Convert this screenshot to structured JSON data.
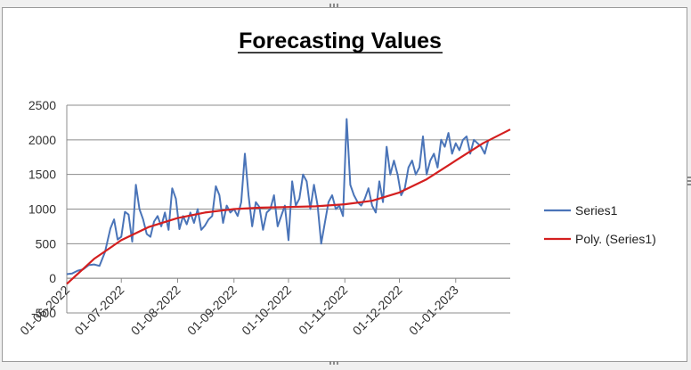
{
  "chart_data": {
    "type": "line",
    "title": "Forecasting Values",
    "xlabel": "",
    "ylabel": "",
    "ylim": [
      -500,
      2500
    ],
    "yticks": [
      -500,
      0,
      500,
      1000,
      1500,
      2000,
      2500
    ],
    "yticks_labels": [
      "-500",
      "0",
      "500",
      "1000",
      "1500",
      "2000",
      "2500"
    ],
    "xlim": [
      "2022-06-01",
      "2023-01-31"
    ],
    "xticks": [
      "2022-06-01",
      "2022-07-01",
      "2022-08-01",
      "2022-09-01",
      "2022-10-01",
      "2022-11-01",
      "2022-12-01",
      "2023-01-01"
    ],
    "xtick_labels": [
      "01-06-2022",
      "01-07-2022",
      "01-08-2022",
      "01-09-2022",
      "01-10-2022",
      "01-11-2022",
      "01-12-2022",
      "01-01-2023"
    ],
    "grid": true,
    "legend_position": "right",
    "colors": {
      "series1": "#4a74b8",
      "trend": "#d41f1f",
      "grid": "#8c8c8c",
      "axis": "#8c8c8c"
    },
    "series": [
      {
        "name": "Series1",
        "x": [
          "2022-06-01",
          "2022-06-04",
          "2022-06-07",
          "2022-06-10",
          "2022-06-13",
          "2022-06-16",
          "2022-06-19",
          "2022-06-22",
          "2022-06-25",
          "2022-06-27",
          "2022-06-29",
          "2022-07-01",
          "2022-07-03",
          "2022-07-05",
          "2022-07-07",
          "2022-07-09",
          "2022-07-11",
          "2022-07-13",
          "2022-07-15",
          "2022-07-17",
          "2022-07-19",
          "2022-07-21",
          "2022-07-23",
          "2022-07-25",
          "2022-07-27",
          "2022-07-29",
          "2022-07-31",
          "2022-08-02",
          "2022-08-04",
          "2022-08-06",
          "2022-08-08",
          "2022-08-10",
          "2022-08-12",
          "2022-08-14",
          "2022-08-16",
          "2022-08-18",
          "2022-08-20",
          "2022-08-22",
          "2022-08-24",
          "2022-08-26",
          "2022-08-28",
          "2022-08-30",
          "2022-09-01",
          "2022-09-03",
          "2022-09-05",
          "2022-09-07",
          "2022-09-09",
          "2022-09-11",
          "2022-09-13",
          "2022-09-15",
          "2022-09-17",
          "2022-09-19",
          "2022-09-21",
          "2022-09-23",
          "2022-09-25",
          "2022-09-27",
          "2022-09-29",
          "2022-10-01",
          "2022-10-03",
          "2022-10-05",
          "2022-10-07",
          "2022-10-09",
          "2022-10-11",
          "2022-10-13",
          "2022-10-15",
          "2022-10-17",
          "2022-10-19",
          "2022-10-21",
          "2022-10-23",
          "2022-10-25",
          "2022-10-27",
          "2022-10-29",
          "2022-10-31",
          "2022-11-02",
          "2022-11-04",
          "2022-11-06",
          "2022-11-08",
          "2022-11-10",
          "2022-11-12",
          "2022-11-14",
          "2022-11-16",
          "2022-11-18",
          "2022-11-20",
          "2022-11-22",
          "2022-11-24",
          "2022-11-26",
          "2022-11-28",
          "2022-11-30",
          "2022-12-02",
          "2022-12-04",
          "2022-12-06",
          "2022-12-08",
          "2022-12-10",
          "2022-12-12",
          "2022-12-14",
          "2022-12-16",
          "2022-12-18",
          "2022-12-20",
          "2022-12-22",
          "2022-12-24",
          "2022-12-26",
          "2022-12-28",
          "2022-12-30",
          "2023-01-01",
          "2023-01-03",
          "2023-01-05",
          "2023-01-07",
          "2023-01-09",
          "2023-01-11",
          "2023-01-13",
          "2023-01-15",
          "2023-01-17",
          "2023-01-19"
        ],
        "y": [
          60,
          70,
          110,
          130,
          190,
          200,
          180,
          380,
          720,
          850,
          560,
          600,
          960,
          920,
          530,
          1350,
          1000,
          850,
          640,
          600,
          820,
          900,
          750,
          950,
          700,
          1300,
          1150,
          710,
          900,
          780,
          950,
          800,
          1000,
          700,
          760,
          850,
          900,
          1330,
          1200,
          800,
          1050,
          950,
          1000,
          900,
          1100,
          1800,
          1200,
          750,
          1100,
          1030,
          700,
          950,
          1000,
          1200,
          750,
          900,
          1050,
          550,
          1400,
          1050,
          1150,
          1500,
          1400,
          1000,
          1350,
          1050,
          500,
          800,
          1100,
          1200,
          1000,
          1050,
          900,
          2300,
          1350,
          1200,
          1100,
          1050,
          1150,
          1300,
          1050,
          950,
          1400,
          1100,
          1900,
          1500,
          1700,
          1500,
          1200,
          1300,
          1600,
          1700,
          1500,
          1600,
          2050,
          1500,
          1700,
          1800,
          1600,
          2000,
          1900,
          2100,
          1800,
          1950,
          1850,
          2000,
          2050,
          1800,
          2000,
          1950,
          1900,
          1800,
          2000
        ]
      },
      {
        "name": "Poly. (Series1)",
        "x": [
          "2022-06-01",
          "2022-06-16",
          "2022-07-01",
          "2022-07-16",
          "2022-08-01",
          "2022-08-16",
          "2022-09-01",
          "2022-09-16",
          "2022-10-01",
          "2022-10-16",
          "2022-11-01",
          "2022-11-16",
          "2022-12-01",
          "2022-12-16",
          "2023-01-01",
          "2023-01-16",
          "2023-01-31"
        ],
        "y": [
          -80,
          280,
          550,
          740,
          870,
          950,
          1000,
          1020,
          1030,
          1040,
          1070,
          1120,
          1240,
          1430,
          1700,
          1950,
          2150
        ]
      }
    ]
  }
}
